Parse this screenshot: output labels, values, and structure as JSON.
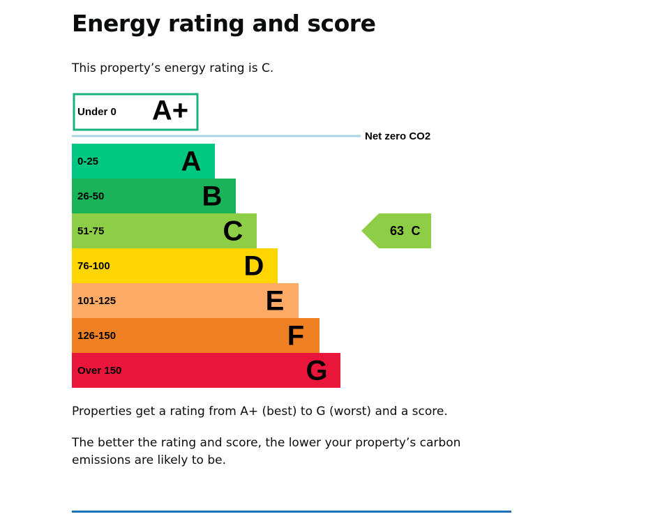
{
  "heading": "Energy rating and score",
  "intro": "This property’s energy rating is C.",
  "net_zero_label": "Net zero CO2",
  "top_band": {
    "range": "Under 0",
    "letter": "A+",
    "color": "#17b27f"
  },
  "bands": [
    {
      "range": "0-25",
      "letter": "A",
      "color": "#00c781"
    },
    {
      "range": "26-50",
      "letter": "B",
      "color": "#19b459"
    },
    {
      "range": "51-75",
      "letter": "C",
      "color": "#8dce46"
    },
    {
      "range": "76-100",
      "letter": "D",
      "color": "#ffd500"
    },
    {
      "range": "101-125",
      "letter": "E",
      "color": "#fcaa65"
    },
    {
      "range": "126-150",
      "letter": "F",
      "color": "#ef8023"
    },
    {
      "range": "Over 150",
      "letter": "G",
      "color": "#e9153b"
    }
  ],
  "current": {
    "score": 63,
    "letter": "C"
  },
  "paragraphs": [
    "Properties get a rating from A+ (best) to G (worst) and a score.",
    "The better the rating and score, the lower your property’s carbon emissions are likely to be."
  ]
}
